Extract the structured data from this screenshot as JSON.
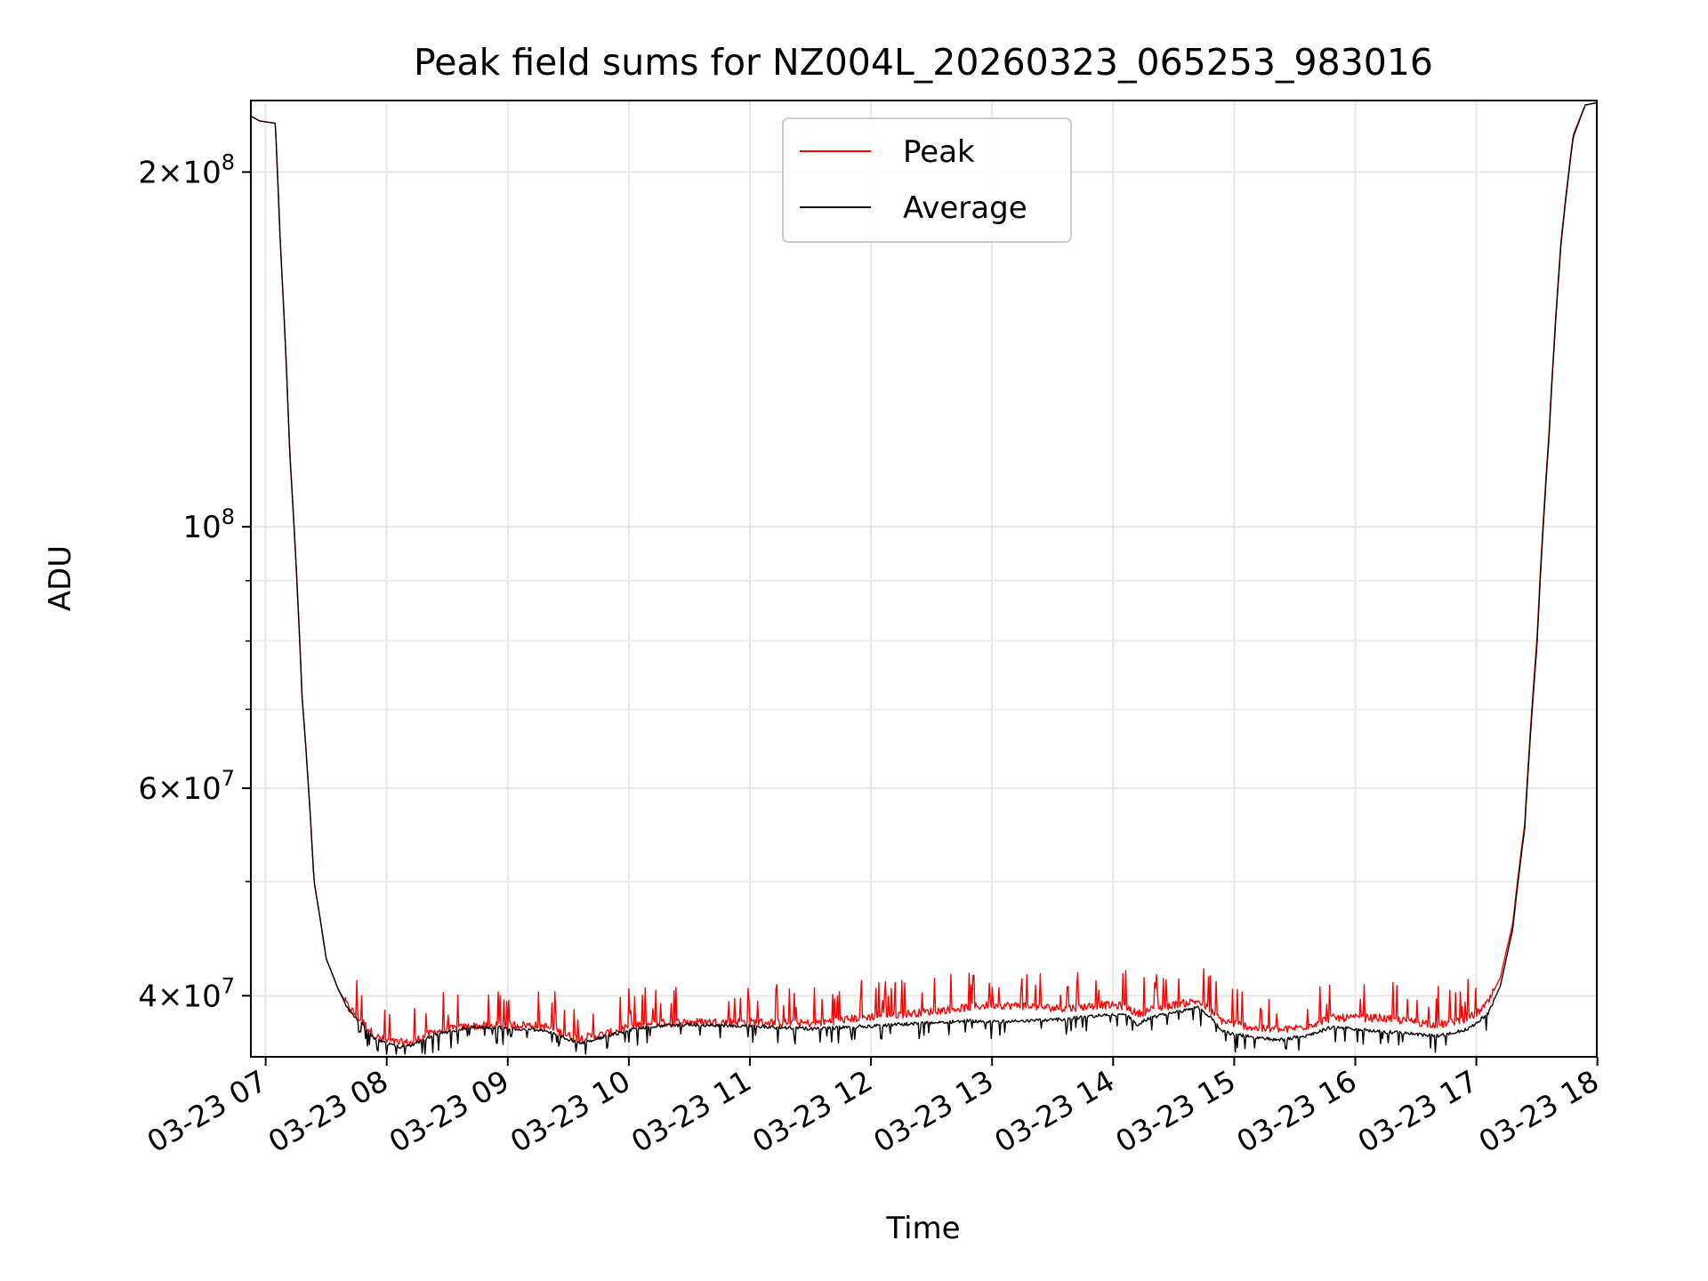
{
  "chart_data": {
    "type": "line",
    "title": "Peak field sums for NZ004L_20260323_065253_983016",
    "xlabel": "Time",
    "ylabel": "ADU",
    "yscale": "log",
    "xlim": [
      6.878,
      17.995
    ],
    "ylim": [
      35500000,
      230000000
    ],
    "grid": true,
    "legend_position": "top-center",
    "x_units": "hour of 2026-03-23",
    "x_ticks": [
      {
        "value": 7,
        "label": "03-23 07"
      },
      {
        "value": 8,
        "label": "03-23 08"
      },
      {
        "value": 9,
        "label": "03-23 09"
      },
      {
        "value": 10,
        "label": "03-23 10"
      },
      {
        "value": 11,
        "label": "03-23 11"
      },
      {
        "value": 12,
        "label": "03-23 12"
      },
      {
        "value": 13,
        "label": "03-23 13"
      },
      {
        "value": 14,
        "label": "03-23 14"
      },
      {
        "value": 15,
        "label": "03-23 15"
      },
      {
        "value": 16,
        "label": "03-23 16"
      },
      {
        "value": 17,
        "label": "03-23 17"
      },
      {
        "value": 18,
        "label": "03-23 18"
      }
    ],
    "y_major_ticks": [
      {
        "value": 40000000,
        "mant": "4",
        "exp": "7"
      },
      {
        "value": 60000000,
        "mant": "6",
        "exp": "7"
      },
      {
        "value": 100000000,
        "mant": "",
        "exp": "8"
      },
      {
        "value": 200000000,
        "mant": "2",
        "exp": "8"
      }
    ],
    "y_minor_ticks": [
      50000000,
      70000000,
      80000000,
      90000000
    ],
    "series": [
      {
        "name": "Peak",
        "color": "#ff0000",
        "noise_amplitude": 1000000,
        "x": [
          6.88,
          6.95,
          7.08,
          7.12,
          7.2,
          7.3,
          7.4,
          7.5,
          7.6,
          7.68,
          7.8,
          7.9,
          8.0,
          8.1,
          8.2,
          8.4,
          8.7,
          8.9,
          9.1,
          9.3,
          9.5,
          9.6,
          9.8,
          10.0,
          10.2,
          10.5,
          11.0,
          11.5,
          12.0,
          12.4,
          12.8,
          13.0,
          13.3,
          13.6,
          13.9,
          14.1,
          14.2,
          14.3,
          14.5,
          14.7,
          14.8,
          14.9,
          15.0,
          15.2,
          15.4,
          15.6,
          15.8,
          16.0,
          16.2,
          16.4,
          16.6,
          16.7,
          16.9,
          17.0,
          17.1,
          17.2,
          17.3,
          17.4,
          17.5,
          17.6,
          17.7,
          17.8,
          17.9,
          17.995
        ],
        "y": [
          223000000,
          221000000,
          220000000,
          175000000,
          115000000,
          72000000,
          50000000,
          43000000,
          40500000,
          39200000,
          38000000,
          37000000,
          36600000,
          36500000,
          36500000,
          37300000,
          37700000,
          37700000,
          37800000,
          37700000,
          37000000,
          36800000,
          37100000,
          37600000,
          37900000,
          38000000,
          38000000,
          37900000,
          38400000,
          38700000,
          39100000,
          39300000,
          39200000,
          39000000,
          39300000,
          39200000,
          38600000,
          38900000,
          39300000,
          39600000,
          38900000,
          38100000,
          37900000,
          37500000,
          37400000,
          37700000,
          38300000,
          38300000,
          38300000,
          38100000,
          37900000,
          37800000,
          38200000,
          38600000,
          39500000,
          41500000,
          46000000,
          56000000,
          80000000,
          120000000,
          175000000,
          215000000,
          228000000,
          229000000
        ]
      },
      {
        "name": "Average",
        "color": "#000000",
        "noise_amplitude": 500000,
        "x": [
          6.88,
          6.95,
          7.08,
          7.12,
          7.2,
          7.3,
          7.4,
          7.5,
          7.6,
          7.68,
          7.8,
          7.9,
          8.0,
          8.1,
          8.2,
          8.4,
          8.7,
          8.9,
          9.1,
          9.3,
          9.5,
          9.6,
          9.8,
          10.0,
          10.2,
          10.5,
          11.0,
          11.5,
          12.0,
          12.4,
          12.8,
          13.0,
          13.3,
          13.6,
          13.9,
          14.1,
          14.2,
          14.3,
          14.5,
          14.7,
          14.8,
          14.9,
          15.0,
          15.2,
          15.4,
          15.6,
          15.8,
          16.0,
          16.2,
          16.4,
          16.6,
          16.7,
          16.9,
          17.0,
          17.1,
          17.2,
          17.3,
          17.4,
          17.5,
          17.6,
          17.7,
          17.8,
          17.9,
          17.995
        ],
        "y": [
          223000000,
          221000000,
          220000000,
          175000000,
          115000000,
          72000000,
          50000000,
          43000000,
          40500000,
          39000000,
          37800000,
          36800000,
          36400000,
          36200000,
          36300000,
          37100000,
          37600000,
          37600000,
          37500000,
          37400000,
          36700000,
          36500000,
          36900000,
          37400000,
          37700000,
          37800000,
          37700000,
          37500000,
          37700000,
          37900000,
          38100000,
          38000000,
          38100000,
          38200000,
          38500000,
          38600000,
          37800000,
          38300000,
          38700000,
          39100000,
          38400000,
          37300000,
          37100000,
          36800000,
          36700000,
          37000000,
          37600000,
          37500000,
          37300000,
          37200000,
          37000000,
          37000000,
          37400000,
          37900000,
          38700000,
          40800000,
          45500000,
          55500000,
          79000000,
          119000000,
          174000000,
          214000000,
          228000000,
          229000000
        ]
      }
    ]
  }
}
